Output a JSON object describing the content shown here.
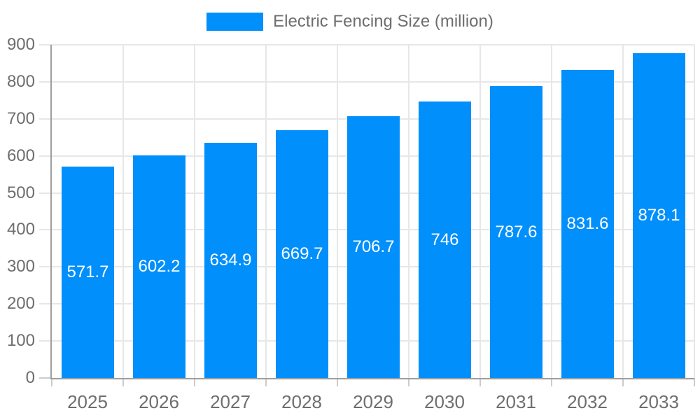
{
  "legend": {
    "label": "Electric Fencing Size (million)"
  },
  "chart_data": {
    "type": "bar",
    "title": "Electric Fencing Size (million)",
    "categories": [
      "2025",
      "2026",
      "2027",
      "2028",
      "2029",
      "2030",
      "2031",
      "2032",
      "2033"
    ],
    "series": [
      {
        "name": "Electric Fencing Size (million)",
        "values": [
          571.7,
          602.2,
          634.9,
          669.7,
          706.7,
          746,
          787.6,
          831.6,
          878.1
        ],
        "value_labels": [
          "571.7",
          "602.2",
          "634.9",
          "669.7",
          "706.7",
          "746",
          "787.6",
          "831.6",
          "878.1"
        ]
      }
    ],
    "xlabel": "",
    "ylabel": "",
    "ylim": [
      0,
      900
    ],
    "yticks": [
      0,
      100,
      200,
      300,
      400,
      500,
      600,
      700,
      800,
      900
    ],
    "ytick_labels": [
      "0",
      "100",
      "200",
      "300",
      "400",
      "500",
      "600",
      "700",
      "800",
      "900"
    ],
    "grid": "horizontal and vertical gridlines on",
    "legend_position": "top-center",
    "value_label_position": "inside-center",
    "colors": {
      "bar": "#008ffb",
      "value_label_text": "#ffffff",
      "axis_text": "#6e6e6e",
      "legend_text": "#6e6e6e",
      "gridline": "#e7e7e7",
      "tick": "#cccccc",
      "axis_line": "#9e9e9e",
      "background": "#ffffff"
    }
  }
}
